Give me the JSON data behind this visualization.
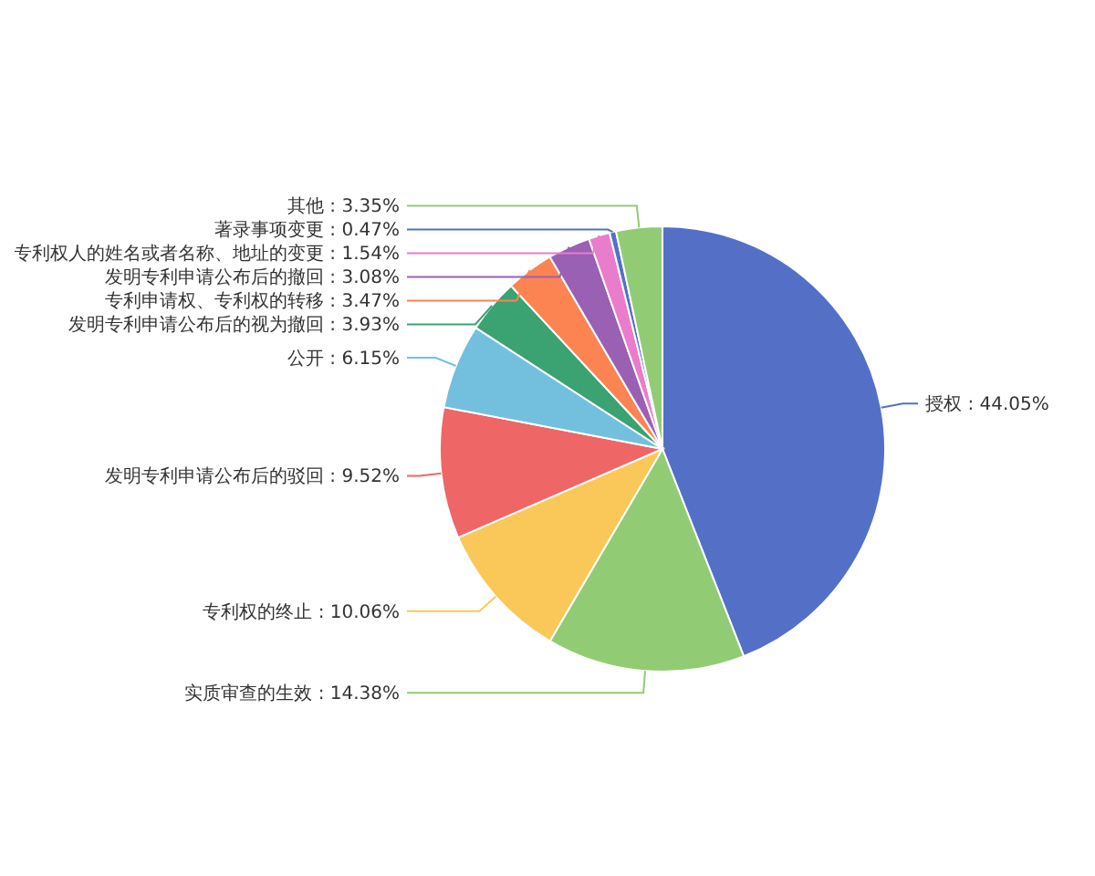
{
  "chart_data": {
    "type": "pie",
    "categories": [
      "授权",
      "实质审查的生效",
      "专利权的终止",
      "发明专利申请公布后的驳回",
      "公开",
      "发明专利申请公布后的视为撤回",
      "专利申请权、专利权的转移",
      "发明专利申请公布后的撤回",
      "专利权人的姓名或者名称、地址的变更",
      "著录事项变更",
      "其他"
    ],
    "values": [
      44.05,
      14.38,
      10.06,
      9.52,
      6.15,
      3.93,
      3.47,
      3.08,
      1.54,
      0.47,
      3.35
    ],
    "colors": [
      "#5470c6",
      "#91cc75",
      "#fac858",
      "#ee6666",
      "#73c0de",
      "#3ba272",
      "#fc8452",
      "#9a60b4",
      "#ea7ccc",
      "#5470c6",
      "#91cc75"
    ],
    "value_labels": [
      ": 44.05%",
      ": 14.38%",
      ": 10.06%",
      ": 9.52%",
      ": 6.15%",
      ": 3.93%",
      ": 3.47%",
      ": 3.08%",
      ": 1.54%",
      ": 0.47%",
      ": 3.35%"
    ]
  }
}
